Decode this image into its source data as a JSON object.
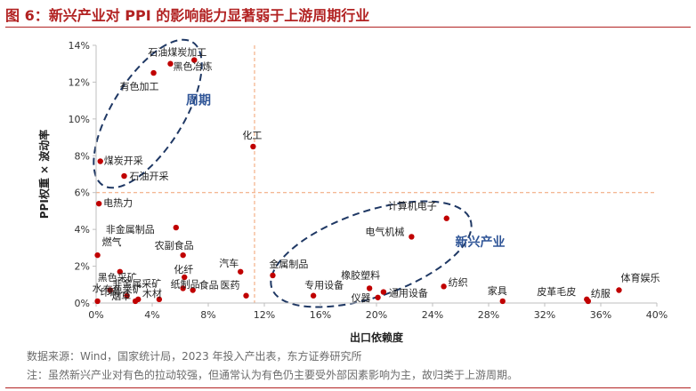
{
  "header": {
    "title": "图 6：新兴产业对 PPI 的影响能力显著弱于上游周期行业"
  },
  "footer": {
    "source": "数据来源：Wind，国家统计局，2023 年投入产出表，东方证券研究所",
    "note": "注：虽然新兴产业对有色的拉动较强，但通常认为有色仍主要受外部因素影响为主，故归类于上游周期。"
  },
  "chart_data": {
    "type": "scatter",
    "xlabel": "出口依赖度",
    "ylabel": "PPI权重 × 波动率",
    "xlim": [
      0,
      40
    ],
    "ylim": [
      0,
      14
    ],
    "x_ticks": [
      "0%",
      "4%",
      "8%",
      "12%",
      "16%",
      "20%",
      "24%",
      "28%",
      "32%",
      "36%",
      "40%"
    ],
    "y_ticks": [
      "0%",
      "2%",
      "4%",
      "6%",
      "8%",
      "10%",
      "12%",
      "14%"
    ],
    "reference_lines": {
      "x": 11.3,
      "y": 6.0
    },
    "grid": false,
    "point_color": "#c00000",
    "points": [
      {
        "label": "石油煤炭加工",
        "x": 7.0,
        "y": 13.2
      },
      {
        "label": "黑色冶炼",
        "x": 5.3,
        "y": 13.0
      },
      {
        "label": "有色加工",
        "x": 4.1,
        "y": 12.5
      },
      {
        "label": "化工",
        "x": 11.2,
        "y": 8.5
      },
      {
        "label": "煤炭开采",
        "x": 0.3,
        "y": 7.7
      },
      {
        "label": "石油开采",
        "x": 2.0,
        "y": 6.9
      },
      {
        "label": "电热力",
        "x": 0.2,
        "y": 5.4
      },
      {
        "label": "非金属制品",
        "x": 5.7,
        "y": 4.1
      },
      {
        "label": "计算机电子",
        "x": 25.0,
        "y": 4.6
      },
      {
        "label": "电气机械",
        "x": 22.5,
        "y": 3.6
      },
      {
        "label": "燃气",
        "x": 0.1,
        "y": 2.6
      },
      {
        "label": "农副食品",
        "x": 6.2,
        "y": 2.6
      },
      {
        "label": "黑色采矿",
        "x": 1.7,
        "y": 1.7
      },
      {
        "label": "化纤",
        "x": 6.3,
        "y": 1.4
      },
      {
        "label": "汽车",
        "x": 10.3,
        "y": 1.7
      },
      {
        "label": "金属制品",
        "x": 12.6,
        "y": 1.5
      },
      {
        "label": "有色采矿",
        "x": 1.0,
        "y": 0.7
      },
      {
        "label": "纸制品",
        "x": 6.2,
        "y": 0.8
      },
      {
        "label": "水",
        "x": 0.1,
        "y": 0.1
      },
      {
        "label": "印刷",
        "x": 2.2,
        "y": 0.4
      },
      {
        "label": "非金属采矿",
        "x": 3.0,
        "y": 0.2
      },
      {
        "label": "烟草",
        "x": 2.8,
        "y": 0.1
      },
      {
        "label": "木材",
        "x": 4.5,
        "y": 0.2
      },
      {
        "label": "食品",
        "x": 6.9,
        "y": 0.7
      },
      {
        "label": "医药",
        "x": 10.7,
        "y": 0.4
      },
      {
        "label": "专用设备",
        "x": 15.5,
        "y": 0.4
      },
      {
        "label": "橡胶塑料",
        "x": 19.5,
        "y": 0.8
      },
      {
        "label": "仪器",
        "x": 20.1,
        "y": 0.3
      },
      {
        "label": "通用设备",
        "x": 20.5,
        "y": 0.6
      },
      {
        "label": "纺织",
        "x": 24.8,
        "y": 0.9
      },
      {
        "label": "家具",
        "x": 29.0,
        "y": 0.1
      },
      {
        "label": "皮革毛皮",
        "x": 35.0,
        "y": 0.2
      },
      {
        "label": "纺服",
        "x": 35.1,
        "y": 0.1
      },
      {
        "label": "体育娱乐",
        "x": 37.3,
        "y": 0.7
      }
    ],
    "annotations": [
      {
        "text": "周期",
        "x": 7.3,
        "y": 10.8
      },
      {
        "text": "新兴产业",
        "x": 27.4,
        "y": 3.1
      }
    ]
  }
}
